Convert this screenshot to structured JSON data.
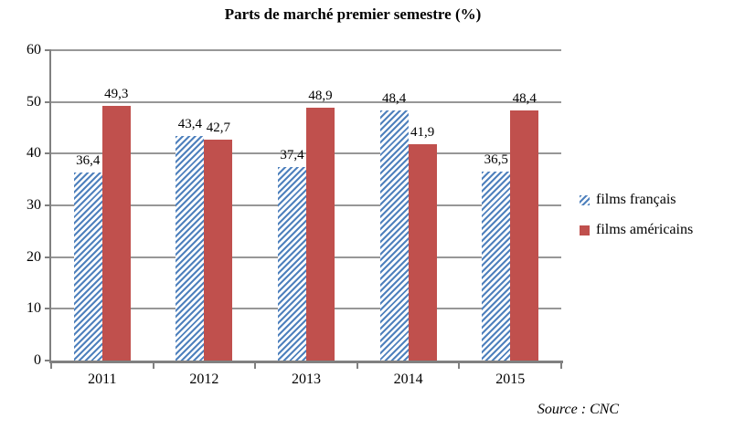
{
  "chart_data": {
    "type": "bar",
    "title": "Parts de marché premier semestre (%)",
    "categories": [
      "2011",
      "2012",
      "2013",
      "2014",
      "2015"
    ],
    "series": [
      {
        "name": "films français",
        "pattern": "hatched-diagonal",
        "color": "#4F81BD",
        "values": [
          36.4,
          43.4,
          37.4,
          48.4,
          36.5
        ],
        "value_labels": [
          "36,4",
          "43,4",
          "37,4",
          "48,4",
          "36,5"
        ]
      },
      {
        "name": "films américains",
        "pattern": "solid",
        "color": "#C0504D",
        "values": [
          49.3,
          42.7,
          48.9,
          41.9,
          48.4
        ],
        "value_labels": [
          "49,3",
          "42,7",
          "48,9",
          "41,9",
          "48,4"
        ]
      }
    ],
    "ylim": [
      0,
      60
    ],
    "yticks": [
      0,
      10,
      20,
      30,
      40,
      50,
      60
    ],
    "grid": true,
    "legend_position": "right",
    "source": "Source : CNC"
  },
  "colors": {
    "gridline": "#979797",
    "axis": "#808080",
    "text": "#000000",
    "background": "#FFFFFF"
  }
}
